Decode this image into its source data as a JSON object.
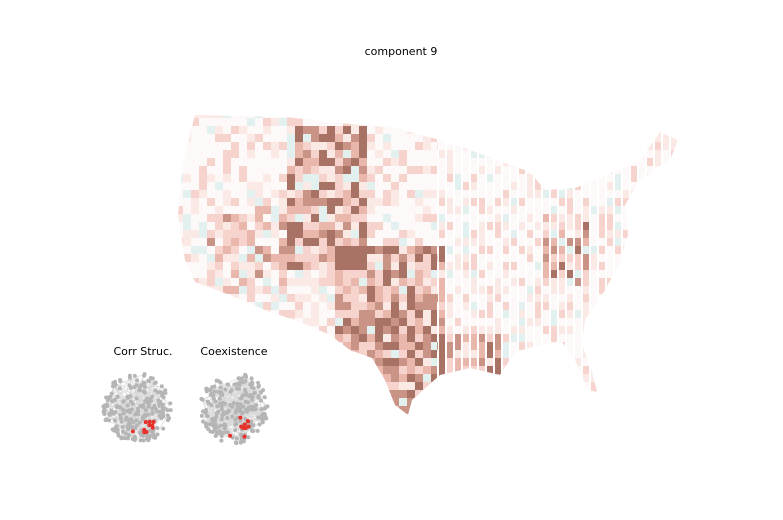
{
  "title": "component 9",
  "insets": [
    {
      "label": "Corr Struc."
    },
    {
      "label": "Coexistence"
    }
  ]
}
